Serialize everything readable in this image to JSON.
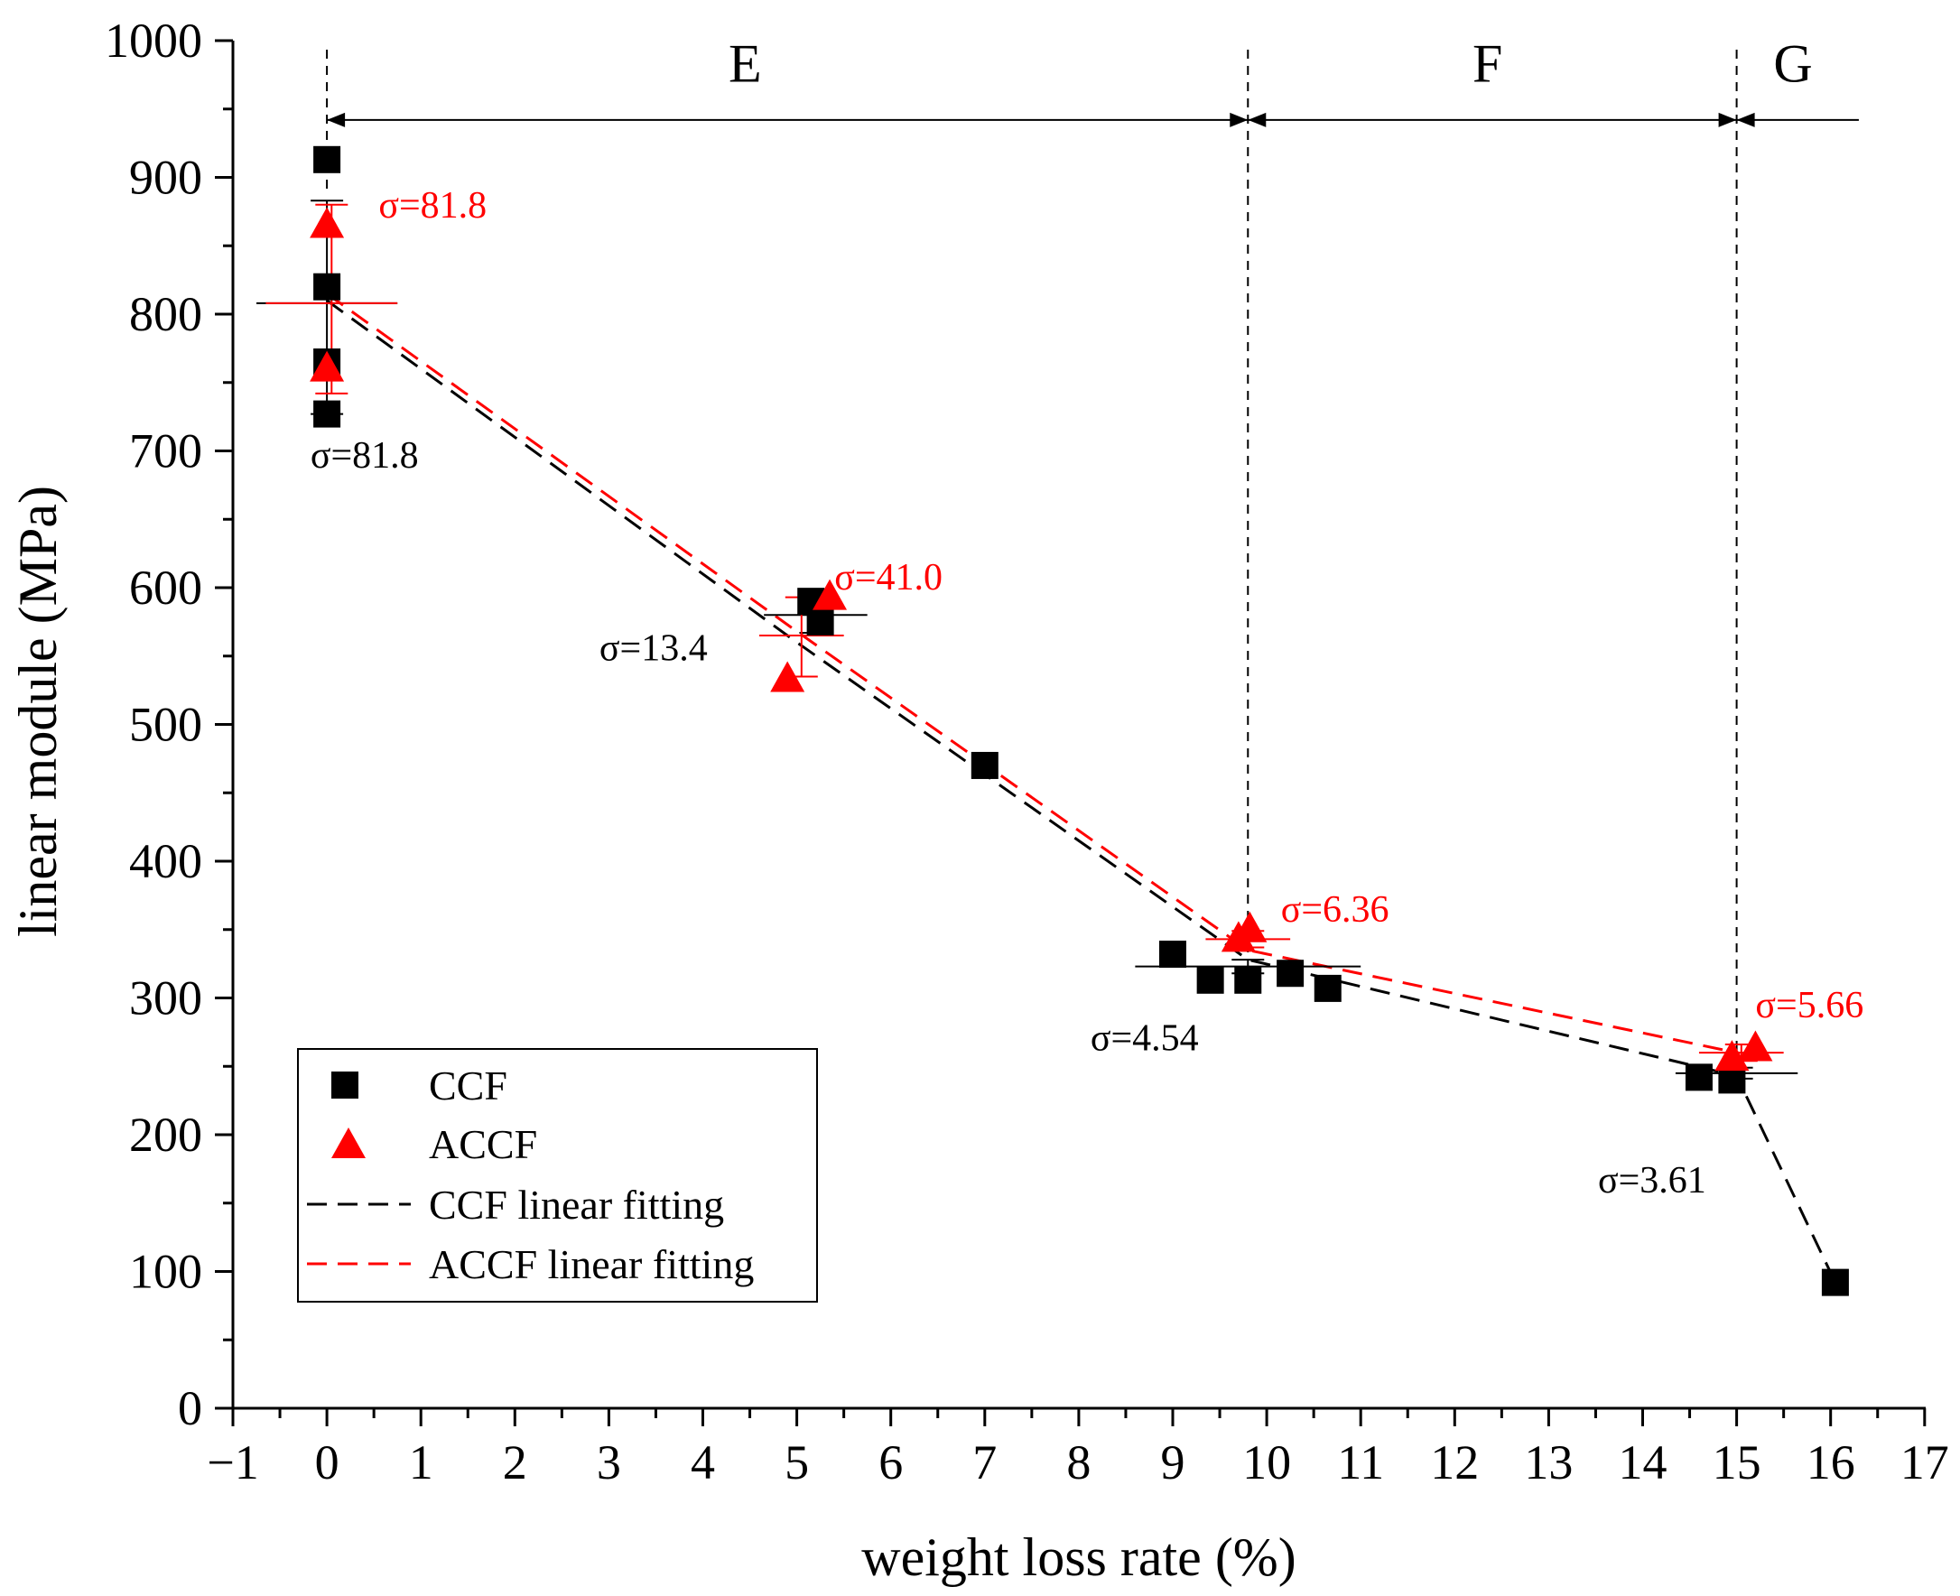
{
  "chart_data": {
    "type": "scatter",
    "title": "",
    "xlabel": "weight loss rate (%)",
    "ylabel": "linear module (MPa)",
    "xlim": [
      -1,
      17
    ],
    "ylim": [
      0,
      1000
    ],
    "x_ticks": [
      -1,
      0,
      1,
      2,
      3,
      4,
      5,
      6,
      7,
      8,
      9,
      10,
      11,
      12,
      13,
      14,
      15,
      16,
      17
    ],
    "y_ticks": [
      0,
      100,
      200,
      300,
      400,
      500,
      600,
      700,
      800,
      900,
      1000
    ],
    "x_tick_labels": [
      "−1",
      "0",
      "1",
      "2",
      "3",
      "4",
      "5",
      "6",
      "7",
      "8",
      "9",
      "10",
      "11",
      "12",
      "13",
      "14",
      "15",
      "16",
      "17"
    ],
    "y_tick_labels": [
      "0",
      "100",
      "200",
      "300",
      "400",
      "500",
      "600",
      "700",
      "800",
      "900",
      "1000"
    ],
    "grid": false,
    "colors": {
      "ccf": "#000000",
      "accf": "#ff0000"
    },
    "series": [
      {
        "name": "CCF",
        "marker": "square",
        "color": "#000000",
        "points": [
          [
            0,
            913
          ],
          [
            0,
            820
          ],
          [
            0,
            765
          ],
          [
            0,
            727
          ],
          [
            5.15,
            590
          ],
          [
            5.25,
            575
          ],
          [
            7,
            470
          ],
          [
            9,
            332
          ],
          [
            9.4,
            313
          ],
          [
            9.8,
            313
          ],
          [
            10.25,
            318
          ],
          [
            10.65,
            307
          ],
          [
            14.6,
            242
          ],
          [
            14.95,
            240
          ],
          [
            16.05,
            92
          ]
        ]
      },
      {
        "name": "ACCF",
        "marker": "triangle",
        "color": "#ff0000",
        "points": [
          [
            0,
            865
          ],
          [
            0,
            760
          ],
          [
            4.9,
            533
          ],
          [
            5.35,
            593
          ],
          [
            9.7,
            343
          ],
          [
            9.82,
            350
          ],
          [
            14.95,
            256
          ],
          [
            15.2,
            263
          ]
        ]
      },
      {
        "name": "CCF linear fitting",
        "style": "dashed",
        "color": "#000000",
        "points": [
          [
            0,
            810
          ],
          [
            5,
            560
          ],
          [
            9.8,
            328
          ],
          [
            15,
            243
          ],
          [
            16.05,
            92
          ]
        ]
      },
      {
        "name": "ACCF linear fitting",
        "style": "dashed",
        "color": "#ff0000",
        "points": [
          [
            0,
            815
          ],
          [
            5,
            568
          ],
          [
            9.8,
            335
          ],
          [
            15,
            260
          ]
        ]
      }
    ],
    "error_bars": [
      {
        "series": "CCF",
        "x": 0,
        "y": 808,
        "xerr": 0.75,
        "ylow": 727,
        "yhigh": 883
      },
      {
        "series": "ACCF",
        "x": 0.05,
        "y": 808,
        "xerr": 0.7,
        "ylow": 742,
        "yhigh": 880
      },
      {
        "series": "CCF",
        "x": 5.2,
        "y": 580,
        "xerr": 0.55,
        "ylow": 567,
        "yhigh": 593
      },
      {
        "series": "ACCF",
        "x": 5.05,
        "y": 565,
        "xerr": 0.45,
        "ylow": 535,
        "yhigh": 593
      },
      {
        "series": "CCF",
        "x": 9.8,
        "y": 323,
        "xerr": 1.2,
        "ylow": 318,
        "yhigh": 328
      },
      {
        "series": "ACCF",
        "x": 9.8,
        "y": 343,
        "xerr": 0.45,
        "ylow": 337,
        "yhigh": 349
      },
      {
        "series": "CCF",
        "x": 15,
        "y": 245,
        "xerr": 0.65,
        "ylow": 241,
        "yhigh": 249
      },
      {
        "series": "ACCF",
        "x": 15.05,
        "y": 260,
        "xerr": 0.45,
        "ylow": 254,
        "yhigh": 266
      }
    ],
    "sigma_annotations": [
      {
        "text": "σ=81.8",
        "x": 0.55,
        "y": 880,
        "color": "#ff0000",
        "anchor": "start"
      },
      {
        "text": "σ=81.8",
        "x": 0.4,
        "y": 697,
        "color": "#000000",
        "anchor": "middle"
      },
      {
        "text": "σ=41.0",
        "x": 5.4,
        "y": 608,
        "color": "#ff0000",
        "anchor": "start"
      },
      {
        "text": "σ=13.4",
        "x": 4.05,
        "y": 556,
        "color": "#000000",
        "anchor": "end"
      },
      {
        "text": "σ=6.36",
        "x": 10.15,
        "y": 365,
        "color": "#ff0000",
        "anchor": "start"
      },
      {
        "text": "σ=4.54",
        "x": 8.7,
        "y": 271,
        "color": "#000000",
        "anchor": "middle"
      },
      {
        "text": "σ=5.66",
        "x": 15.2,
        "y": 295,
        "color": "#ff0000",
        "anchor": "start"
      },
      {
        "text": "σ=3.61",
        "x": 14.1,
        "y": 167,
        "color": "#000000",
        "anchor": "middle"
      }
    ],
    "regions": {
      "boundaries": [
        0,
        9.8,
        15
      ],
      "arrow_right_end": 16.3,
      "arrow_y": 942,
      "labels": [
        {
          "text": "E",
          "x": 4.45,
          "y": 982
        },
        {
          "text": "F",
          "x": 12.35,
          "y": 982
        },
        {
          "text": "G",
          "x": 15.6,
          "y": 982
        }
      ]
    },
    "legend": {
      "position": "bottom-left",
      "entries": [
        "CCF",
        "ACCF",
        "CCF linear fitting",
        "ACCF linear fitting"
      ]
    }
  }
}
